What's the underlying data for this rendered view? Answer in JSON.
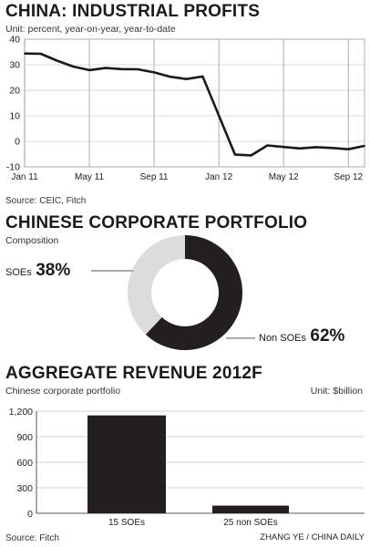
{
  "charts": {
    "profits": {
      "title": "CHINA: INDUSTRIAL PROFITS",
      "subtitle": "Unit: percent, year-on-year, year-to-date",
      "source": "Source: CEIC, Fitch"
    },
    "portfolio": {
      "title": "CHINESE CORPORATE PORTFOLIO",
      "subtitle": "Composition"
    },
    "revenue": {
      "title": "AGGREGATE REVENUE 2012F",
      "subtitle": "Chinese corporate portfolio",
      "unit": "Unit: $billion",
      "source": "Source: Fitch"
    }
  },
  "credit": "ZHANG YE / CHINA DAILY",
  "chart_data": [
    {
      "type": "line",
      "title": "CHINA: INDUSTRIAL PROFITS",
      "x_ticks": [
        "Jan 11",
        "May 11",
        "Sep 11",
        "Jan 12",
        "May 12",
        "Sep 12"
      ],
      "x": [
        "Jan 11",
        "Feb 11",
        "Mar 11",
        "Apr 11",
        "May 11",
        "Jun 11",
        "Jul 11",
        "Aug 11",
        "Sep 11",
        "Oct 11",
        "Nov 11",
        "Dec 11",
        "Jan 12",
        "Feb 12",
        "Mar 12",
        "Apr 12",
        "May 12",
        "Jun 12",
        "Jul 12",
        "Aug 12",
        "Sep 12",
        "Oct 12"
      ],
      "series": [
        {
          "values": [
            34.4,
            34.3,
            31.6,
            29.3,
            27.9,
            28.7,
            28.3,
            28.2,
            27.0,
            25.3,
            24.4,
            25.4,
            null,
            -5.2,
            -5.5,
            -1.6,
            -2.2,
            -2.8,
            -2.3,
            -2.6,
            -3.1,
            -1.8
          ],
          "color": "#1a1a1a"
        }
      ],
      "y_ticks": [
        -10,
        0,
        10,
        20,
        30,
        40
      ],
      "ylim": [
        -10,
        40
      ],
      "grid": "vertical at labelled months",
      "color": "#1a1a1a"
    },
    {
      "type": "pie",
      "title": "CHINESE CORPORATE PORTFOLIO",
      "style": "donut",
      "slices": [
        {
          "label": "SOEs",
          "value": 38,
          "display": "38%",
          "color": "#dcdcdc"
        },
        {
          "label": "Non SOEs",
          "value": 62,
          "display": "62%",
          "color": "#231f20"
        }
      ]
    },
    {
      "type": "bar",
      "title": "AGGREGATE REVENUE 2012F",
      "categories": [
        "15 SOEs",
        "25 non SOEs"
      ],
      "values": [
        1150,
        90
      ],
      "y_ticks": [
        "0",
        "300",
        "600",
        "900",
        "1,200"
      ],
      "ylim": [
        0,
        1200
      ],
      "grid": "horizontal",
      "color": "#231f20"
    }
  ]
}
